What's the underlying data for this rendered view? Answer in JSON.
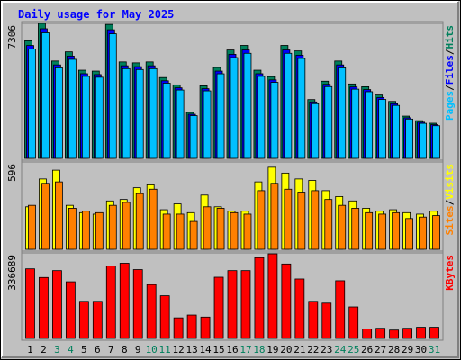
{
  "chart_data": [
    {
      "type": "bar",
      "title": "Daily usage for May 2025",
      "legend_separator": "/",
      "ylim": [
        0,
        7306
      ],
      "yticks": [
        7306
      ],
      "series": [
        {
          "name": "Hits",
          "color": "#00805c",
          "values": [
            6362,
            7306,
            5268,
            5765,
            4771,
            4722,
            7250,
            5219,
            5169,
            5219,
            4374,
            3976,
            2485,
            3926,
            4920,
            5865,
            6113,
            4771,
            4423,
            6113,
            5815,
            3181,
            4175,
            5268,
            4026,
            3877,
            3429,
            3081,
            2286,
            2038,
            1900
          ]
        },
        {
          "name": "Files",
          "color": "#0000ff",
          "values": [
            6108,
            7014,
            5057,
            5534,
            4580,
            4533,
            6960,
            5010,
            4962,
            5010,
            4199,
            3817,
            2386,
            3769,
            4723,
            5630,
            5868,
            4580,
            4246,
            5868,
            5582,
            3054,
            4008,
            5057,
            3865,
            3722,
            3292,
            2958,
            2195,
            1956,
            1824
          ]
        },
        {
          "name": "Pages",
          "color": "#00c0ff",
          "values": [
            5917,
            6795,
            4899,
            5361,
            4437,
            4391,
            6743,
            4854,
            4807,
            4854,
            4068,
            3698,
            2311,
            3651,
            4576,
            5454,
            5685,
            4437,
            4113,
            5685,
            5408,
            2958,
            3883,
            4899,
            3744,
            3606,
            3189,
            2865,
            2126,
            1895,
            1767
          ]
        }
      ]
    },
    {
      "type": "bar",
      "legend_separator": "/",
      "ylim": [
        0,
        596
      ],
      "yticks": [
        596
      ],
      "series": [
        {
          "name": "Visits",
          "color": "#ffff00",
          "values": [
            290,
            480,
            540,
            300,
            250,
            240,
            330,
            340,
            420,
            440,
            270,
            310,
            250,
            370,
            290,
            260,
            260,
            460,
            560,
            520,
            480,
            470,
            400,
            360,
            330,
            280,
            260,
            270,
            250,
            240,
            260
          ]
        },
        {
          "name": "Sites",
          "color": "#ff8000",
          "values": [
            300,
            450,
            460,
            280,
            260,
            250,
            300,
            320,
            380,
            410,
            240,
            240,
            190,
            290,
            280,
            250,
            240,
            400,
            450,
            410,
            390,
            400,
            340,
            300,
            280,
            250,
            240,
            250,
            210,
            220,
            230
          ]
        }
      ]
    },
    {
      "type": "bar",
      "ylim": [
        0,
        336689
      ],
      "yticks": [
        336689
      ],
      "categories": [
        "1",
        "2",
        "3",
        "4",
        "5",
        "6",
        "7",
        "8",
        "9",
        "10",
        "11",
        "12",
        "13",
        "14",
        "15",
        "16",
        "17",
        "18",
        "19",
        "20",
        "21",
        "22",
        "23",
        "24",
        "25",
        "26",
        "27",
        "28",
        "29",
        "30",
        "31"
      ],
      "tick_label_colors": [
        "#000000",
        "#000000",
        "#00805c",
        "#00805c",
        "#000000",
        "#000000",
        "#000000",
        "#000000",
        "#000000",
        "#00805c",
        "#00805c",
        "#000000",
        "#000000",
        "#000000",
        "#000000",
        "#000000",
        "#00805c",
        "#00805c",
        "#000000",
        "#000000",
        "#000000",
        "#000000",
        "#000000",
        "#00805c",
        "#00805c",
        "#000000",
        "#000000",
        "#000000",
        "#000000",
        "#000000",
        "#00805c"
      ],
      "series": [
        {
          "name": "KBytes",
          "color": "#ff0000",
          "values": [
            274000,
            240000,
            267000,
            223000,
            146000,
            146000,
            285000,
            296000,
            271000,
            212000,
            168000,
            81000,
            92000,
            84000,
            241000,
            267000,
            267000,
            318000,
            333000,
            293000,
            234000,
            146000,
            139000,
            227000,
            124000,
            37000,
            40000,
            33000,
            40000,
            44000,
            44000
          ]
        }
      ]
    }
  ]
}
